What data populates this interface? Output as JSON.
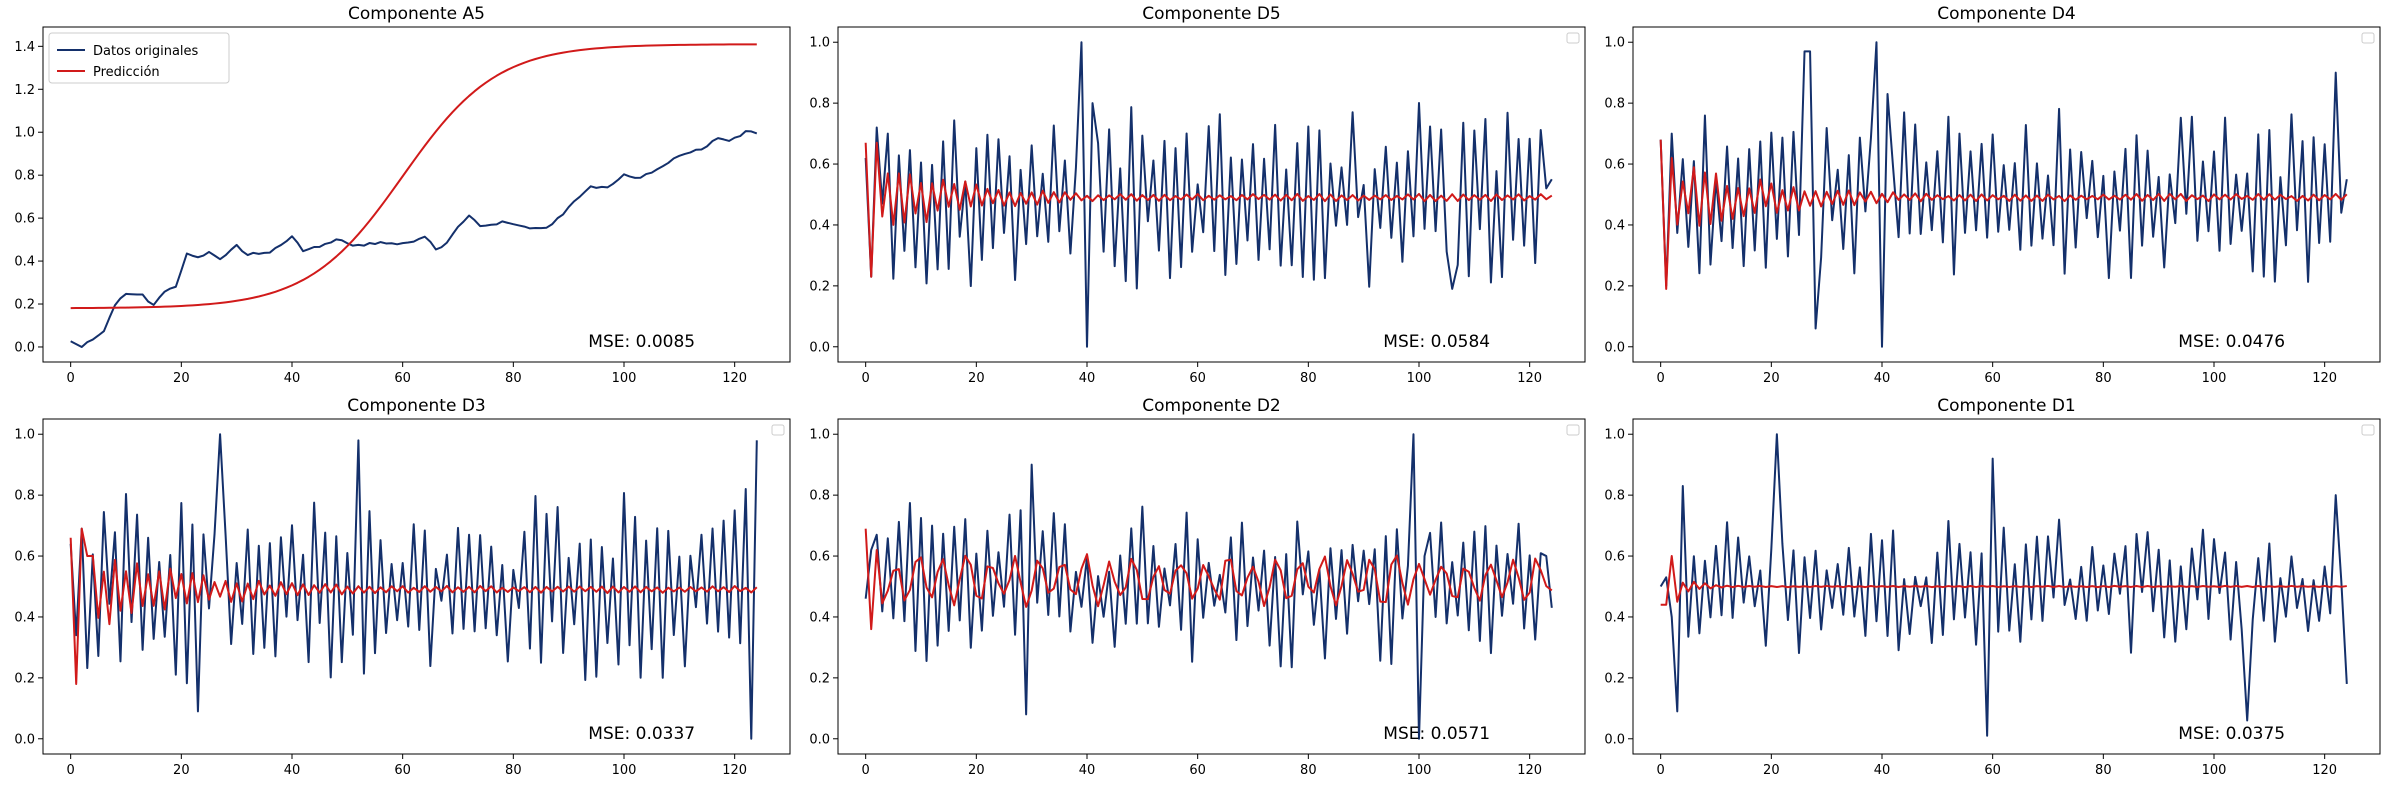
{
  "figure": {
    "colors": {
      "original": "#14306b",
      "prediction": "#d11a1a",
      "axes": "#000000",
      "background": "#ffffff"
    },
    "legend": {
      "labels": [
        "Datos originales",
        "Predicción"
      ],
      "placement": "upper-left of first panel"
    }
  },
  "chart_data": [
    {
      "type": "line",
      "title": "Componente A5",
      "xlabel": "",
      "ylabel": "",
      "xlim": [
        -5,
        130
      ],
      "ylim": [
        -0.07,
        1.49
      ],
      "xticks": [
        0,
        20,
        40,
        60,
        80,
        100,
        120
      ],
      "yticks": [
        0.0,
        0.2,
        0.4,
        0.6,
        0.8,
        1.0,
        1.2,
        1.4
      ],
      "grid": false,
      "legend": "upper-left",
      "annotation": "MSE: 0.0085",
      "series": [
        {
          "name": "Datos originales",
          "color": "#14306b",
          "kind": "trend",
          "anchors": [
            [
              0,
              0.03
            ],
            [
              2,
              0.0
            ],
            [
              4,
              0.04
            ],
            [
              6,
              0.07
            ],
            [
              8,
              0.2
            ],
            [
              10,
              0.25
            ],
            [
              13,
              0.24
            ],
            [
              15,
              0.19
            ],
            [
              17,
              0.26
            ],
            [
              19,
              0.28
            ],
            [
              21,
              0.44
            ],
            [
              23,
              0.42
            ],
            [
              25,
              0.44
            ],
            [
              27,
              0.41
            ],
            [
              30,
              0.47
            ],
            [
              32,
              0.43
            ],
            [
              36,
              0.44
            ],
            [
              38,
              0.47
            ],
            [
              40,
              0.51
            ],
            [
              42,
              0.45
            ],
            [
              45,
              0.47
            ],
            [
              48,
              0.5
            ],
            [
              52,
              0.47
            ],
            [
              56,
              0.49
            ],
            [
              60,
              0.48
            ],
            [
              64,
              0.51
            ],
            [
              66,
              0.46
            ],
            [
              68,
              0.48
            ],
            [
              70,
              0.56
            ],
            [
              72,
              0.61
            ],
            [
              74,
              0.56
            ],
            [
              78,
              0.58
            ],
            [
              82,
              0.56
            ],
            [
              86,
              0.55
            ],
            [
              89,
              0.62
            ],
            [
              92,
              0.7
            ],
            [
              94,
              0.75
            ],
            [
              97,
              0.74
            ],
            [
              100,
              0.8
            ],
            [
              103,
              0.79
            ],
            [
              106,
              0.83
            ],
            [
              110,
              0.89
            ],
            [
              114,
              0.92
            ],
            [
              117,
              0.97
            ],
            [
              119,
              0.96
            ],
            [
              122,
              1.0
            ],
            [
              124,
              1.0
            ]
          ]
        },
        {
          "name": "Predicción",
          "color": "#d11a1a",
          "kind": "sigmoid",
          "params": {
            "low": 0.18,
            "high": 1.41,
            "mid": 60,
            "scale": 8.5,
            "x_start": 0,
            "x_end": 124
          }
        }
      ]
    },
    {
      "type": "line",
      "title": "Componente D5",
      "xlabel": "",
      "ylabel": "",
      "xlim": [
        -5,
        130
      ],
      "ylim": [
        -0.05,
        1.05
      ],
      "xticks": [
        0,
        20,
        40,
        60,
        80,
        100,
        120
      ],
      "yticks": [
        0.0,
        0.2,
        0.4,
        0.6,
        0.8,
        1.0
      ],
      "grid": false,
      "legend": "empty box, top-right",
      "annotation": "MSE: 0.0584",
      "series": [
        {
          "name": "Datos originales",
          "color": "#14306b",
          "kind": "noise",
          "mean": 0.49,
          "amp": 0.27,
          "seed": 11,
          "points": [
            [
              0,
              0.62
            ],
            [
              1,
              0.23
            ],
            [
              2,
              0.72
            ],
            [
              3,
              0.47
            ],
            [
              4,
              0.7
            ],
            [
              39,
              1.0
            ],
            [
              40,
              0.0
            ],
            [
              41,
              0.8
            ],
            [
              81,
              0.22
            ],
            [
              106,
              0.19
            ],
            [
              123,
              0.52
            ],
            [
              124,
              0.55
            ]
          ]
        },
        {
          "name": "Predicción",
          "color": "#d11a1a",
          "kind": "damped",
          "mean": 0.49,
          "start": 0.67,
          "amp": 0.16,
          "decay": 0.06,
          "floor": 0.012,
          "seed": 12,
          "points": [
            [
              0,
              0.67
            ],
            [
              1,
              0.23
            ],
            [
              2,
              0.67
            ]
          ]
        }
      ]
    },
    {
      "type": "line",
      "title": "Componente D4",
      "xlabel": "",
      "ylabel": "",
      "xlim": [
        -5,
        130
      ],
      "ylim": [
        -0.05,
        1.05
      ],
      "xticks": [
        0,
        20,
        40,
        60,
        80,
        100,
        120
      ],
      "yticks": [
        0.0,
        0.2,
        0.4,
        0.6,
        0.8,
        1.0
      ],
      "grid": false,
      "legend": "empty box, top-right",
      "annotation": "MSE: 0.0476",
      "series": [
        {
          "name": "Datos originales",
          "color": "#14306b",
          "kind": "noise",
          "mean": 0.49,
          "amp": 0.25,
          "seed": 21,
          "points": [
            [
              0,
              0.68
            ],
            [
              1,
              0.2
            ],
            [
              2,
              0.7
            ],
            [
              26,
              0.97
            ],
            [
              27,
              0.97
            ],
            [
              28,
              0.06
            ],
            [
              39,
              1.0
            ],
            [
              40,
              0.0
            ],
            [
              41,
              0.83
            ],
            [
              122,
              0.9
            ],
            [
              123,
              0.44
            ],
            [
              124,
              0.55
            ]
          ]
        },
        {
          "name": "Predicción",
          "color": "#d11a1a",
          "kind": "damped",
          "mean": 0.49,
          "start": 0.68,
          "amp": 0.15,
          "decay": 0.05,
          "floor": 0.012,
          "seed": 22,
          "points": [
            [
              0,
              0.68
            ],
            [
              1,
              0.19
            ],
            [
              2,
              0.62
            ]
          ]
        }
      ]
    },
    {
      "type": "line",
      "title": "Componente D3",
      "xlabel": "",
      "ylabel": "",
      "xlim": [
        -5,
        130
      ],
      "ylim": [
        -0.05,
        1.05
      ],
      "xticks": [
        0,
        20,
        40,
        60,
        80,
        100,
        120
      ],
      "yticks": [
        0.0,
        0.2,
        0.4,
        0.6,
        0.8,
        1.0
      ],
      "grid": false,
      "legend": "empty box, top-right",
      "annotation": "MSE: 0.0337",
      "series": [
        {
          "name": "Datos originales",
          "color": "#14306b",
          "kind": "noise",
          "mean": 0.49,
          "amp": 0.26,
          "seed": 31,
          "points": [
            [
              0,
              0.64
            ],
            [
              1,
              0.34
            ],
            [
              2,
              0.69
            ],
            [
              23,
              0.09
            ],
            [
              27,
              1.0
            ],
            [
              52,
              0.98
            ],
            [
              122,
              0.82
            ],
            [
              123,
              0.0
            ],
            [
              124,
              0.98
            ]
          ]
        },
        {
          "name": "Predicción",
          "color": "#d11a1a",
          "kind": "damped",
          "mean": 0.49,
          "start": 0.66,
          "amp": 0.16,
          "decay": 0.045,
          "floor": 0.012,
          "seed": 32,
          "points": [
            [
              0,
              0.66
            ],
            [
              1,
              0.18
            ],
            [
              2,
              0.69
            ],
            [
              3,
              0.6
            ]
          ]
        }
      ]
    },
    {
      "type": "line",
      "title": "Componente D2",
      "xlabel": "",
      "ylabel": "",
      "xlim": [
        -5,
        130
      ],
      "ylim": [
        -0.05,
        1.05
      ],
      "xticks": [
        0,
        20,
        40,
        60,
        80,
        100,
        120
      ],
      "yticks": [
        0.0,
        0.2,
        0.4,
        0.6,
        0.8,
        1.0
      ],
      "grid": false,
      "legend": "empty box, top-right",
      "annotation": "MSE: 0.0571",
      "series": [
        {
          "name": "Datos originales",
          "color": "#14306b",
          "kind": "noise",
          "mean": 0.5,
          "amp": 0.22,
          "seed": 41,
          "points": [
            [
              0,
              0.46
            ],
            [
              1,
              0.62
            ],
            [
              29,
              0.08
            ],
            [
              30,
              0.9
            ],
            [
              99,
              1.0
            ],
            [
              100,
              0.0
            ],
            [
              101,
              0.6
            ],
            [
              123,
              0.6
            ],
            [
              124,
              0.43
            ]
          ]
        },
        {
          "name": "Predicción",
          "color": "#d11a1a",
          "kind": "wave",
          "mean": 0.52,
          "amp": 0.065,
          "period": 4.3,
          "seed": 42,
          "points": [
            [
              0,
              0.69
            ],
            [
              1,
              0.36
            ],
            [
              2,
              0.62
            ]
          ]
        }
      ]
    },
    {
      "type": "line",
      "title": "Componente D1",
      "xlabel": "",
      "ylabel": "",
      "xlim": [
        -5,
        130
      ],
      "ylim": [
        -0.05,
        1.05
      ],
      "xticks": [
        0,
        20,
        40,
        60,
        80,
        100,
        120
      ],
      "yticks": [
        0.0,
        0.2,
        0.4,
        0.6,
        0.8,
        1.0
      ],
      "grid": false,
      "legend": "empty box, top-right",
      "annotation": "MSE: 0.0375",
      "series": [
        {
          "name": "Datos originales",
          "color": "#14306b",
          "kind": "noise",
          "mean": 0.5,
          "amp": 0.17,
          "seed": 51,
          "points": [
            [
              0,
              0.5
            ],
            [
              1,
              0.53
            ],
            [
              2,
              0.4
            ],
            [
              3,
              0.09
            ],
            [
              4,
              0.83
            ],
            [
              21,
              1.0
            ],
            [
              59,
              0.01
            ],
            [
              60,
              0.92
            ],
            [
              106,
              0.06
            ],
            [
              122,
              0.8
            ],
            [
              123,
              0.52
            ],
            [
              124,
              0.18
            ]
          ]
        },
        {
          "name": "Predicción",
          "color": "#d11a1a",
          "kind": "damped",
          "mean": 0.5,
          "start": 0.44,
          "amp": 0.08,
          "decay": 0.25,
          "floor": 0.002,
          "seed": 52,
          "points": [
            [
              0,
              0.44
            ],
            [
              1,
              0.44
            ],
            [
              2,
              0.6
            ],
            [
              3,
              0.45
            ]
          ]
        }
      ]
    }
  ]
}
